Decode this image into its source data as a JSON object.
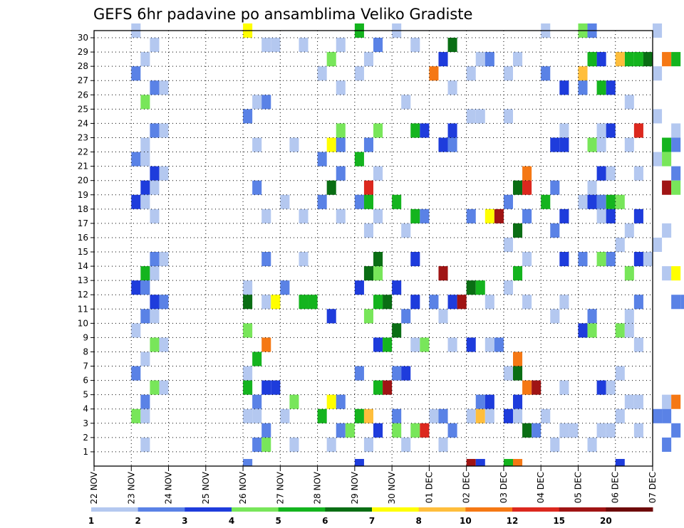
{
  "chart_data": {
    "type": "heatmap",
    "title": "GEFS 6hr padavine po ansamblima Veliko Gradiste",
    "y_ticks": [
      "1",
      "2",
      "3",
      "4",
      "5",
      "6",
      "7",
      "8",
      "9",
      "10",
      "11",
      "12",
      "13",
      "14",
      "15",
      "16",
      "17",
      "18",
      "19",
      "20",
      "21",
      "22",
      "23",
      "24",
      "25",
      "26",
      "27",
      "28",
      "29",
      "30"
    ],
    "ylim": [
      0,
      30
    ],
    "x_ticks": [
      "22 NOV",
      "23 NOV",
      "24 NOV",
      "25 NOV",
      "26 NOV",
      "27 NOV",
      "28 NOV",
      "29 NOV",
      "30 NOV",
      "01 DEC",
      "02 DEC",
      "03 DEC",
      "04 DEC",
      "05 DEC",
      "06 DEC",
      "07 DEC"
    ],
    "steps_per_day": 4,
    "grid": "dotted",
    "colorbar": {
      "position": "bottom",
      "tick_labels": [
        "1",
        "2",
        "3",
        "4",
        "5",
        "6",
        "7",
        "8",
        "10",
        "12",
        "15",
        "20"
      ],
      "colors": [
        "#b4c8f0",
        "#5a82e6",
        "#1e3cdc",
        "#78e65a",
        "#14b41e",
        "#0a6e14",
        "#ffff00",
        "#ffbe3c",
        "#f57814",
        "#dc281e",
        "#a01414",
        "#6e0a0a"
      ]
    },
    "cells": [
      [
        1,
        30,
        0
      ],
      [
        1,
        29,
        0
      ],
      [
        1,
        28,
        0
      ],
      [
        1,
        27,
        1
      ],
      [
        1,
        26,
        1
      ],
      [
        1,
        26,
        0
      ],
      [
        1,
        25,
        3
      ],
      [
        1,
        23,
        1
      ],
      [
        1,
        23,
        0
      ],
      [
        1,
        22,
        0
      ],
      [
        1,
        21,
        1
      ],
      [
        1,
        21,
        0
      ],
      [
        1,
        20,
        2
      ],
      [
        1,
        20,
        0
      ],
      [
        1,
        19,
        2
      ],
      [
        1,
        19,
        0
      ],
      [
        1,
        18,
        2
      ],
      [
        1,
        18,
        0
      ],
      [
        1,
        17,
        0
      ],
      [
        1,
        14,
        1
      ],
      [
        1,
        14,
        0
      ],
      [
        1,
        13,
        4
      ],
      [
        1,
        13,
        0
      ],
      [
        1,
        12,
        2
      ],
      [
        1,
        12,
        1
      ],
      [
        1,
        11,
        2
      ],
      [
        1,
        11,
        1
      ],
      [
        1,
        10,
        1
      ],
      [
        1,
        10,
        0
      ],
      [
        1,
        9,
        0
      ],
      [
        1,
        8,
        3
      ],
      [
        1,
        8,
        0
      ],
      [
        1,
        7,
        0
      ],
      [
        1,
        6,
        1
      ],
      [
        1,
        5,
        3
      ],
      [
        1,
        5,
        0
      ],
      [
        1,
        4,
        1
      ],
      [
        1,
        3,
        3
      ],
      [
        1,
        3,
        0
      ],
      [
        1,
        1,
        0
      ],
      [
        4,
        30,
        6
      ],
      [
        4,
        29,
        0
      ],
      [
        4,
        29,
        0
      ],
      [
        4,
        25,
        0
      ],
      [
        4,
        25,
        1
      ],
      [
        4,
        24,
        1
      ],
      [
        4,
        22,
        0
      ],
      [
        4,
        19,
        1
      ],
      [
        4,
        17,
        0
      ],
      [
        4,
        14,
        1
      ],
      [
        4,
        12,
        0
      ],
      [
        4,
        11,
        0
      ],
      [
        4,
        11,
        6
      ],
      [
        4,
        11,
        5
      ],
      [
        4,
        9,
        3
      ],
      [
        4,
        8,
        8
      ],
      [
        4,
        7,
        4
      ],
      [
        4,
        6,
        0
      ],
      [
        4,
        5,
        2
      ],
      [
        4,
        5,
        2
      ],
      [
        4,
        5,
        4
      ],
      [
        4,
        4,
        1
      ],
      [
        4,
        3,
        0
      ],
      [
        4,
        3,
        0
      ],
      [
        4,
        2,
        1
      ],
      [
        4,
        1,
        1
      ],
      [
        4,
        1,
        3
      ],
      [
        4,
        0,
        1
      ],
      [
        5,
        29,
        0
      ],
      [
        5,
        22,
        0
      ],
      [
        5,
        18,
        0
      ],
      [
        5,
        17,
        0
      ],
      [
        5,
        14,
        0
      ],
      [
        5,
        12,
        1
      ],
      [
        5,
        11,
        4
      ],
      [
        5,
        11,
        4
      ],
      [
        5,
        4,
        3
      ],
      [
        5,
        3,
        0
      ],
      [
        5,
        1,
        0
      ],
      [
        6,
        29,
        0
      ],
      [
        6,
        28,
        3
      ],
      [
        6,
        27,
        0
      ],
      [
        6,
        26,
        0
      ],
      [
        6,
        23,
        3
      ],
      [
        6,
        22,
        6
      ],
      [
        6,
        22,
        1
      ],
      [
        6,
        21,
        1
      ],
      [
        6,
        20,
        1
      ],
      [
        6,
        19,
        5
      ],
      [
        6,
        18,
        1
      ],
      [
        6,
        17,
        0
      ],
      [
        6,
        10,
        2
      ],
      [
        6,
        4,
        6
      ],
      [
        6,
        4,
        1
      ],
      [
        6,
        3,
        4
      ],
      [
        6,
        2,
        1
      ],
      [
        6,
        2,
        3
      ],
      [
        6,
        1,
        0
      ],
      [
        7,
        30,
        4
      ],
      [
        7,
        29,
        1
      ],
      [
        7,
        28,
        0
      ],
      [
        7,
        27,
        0
      ],
      [
        7,
        23,
        3
      ],
      [
        7,
        22,
        1
      ],
      [
        7,
        21,
        4
      ],
      [
        7,
        20,
        0
      ],
      [
        7,
        19,
        9
      ],
      [
        7,
        18,
        1
      ],
      [
        7,
        18,
        4
      ],
      [
        7,
        17,
        0
      ],
      [
        7,
        16,
        0
      ],
      [
        7,
        14,
        5
      ],
      [
        7,
        13,
        5
      ],
      [
        7,
        13,
        3
      ],
      [
        7,
        12,
        2
      ],
      [
        7,
        11,
        4
      ],
      [
        7,
        11,
        5
      ],
      [
        7,
        10,
        3
      ],
      [
        7,
        8,
        2
      ],
      [
        7,
        8,
        4
      ],
      [
        7,
        6,
        1
      ],
      [
        7,
        5,
        4
      ],
      [
        7,
        5,
        10
      ],
      [
        7,
        3,
        4
      ],
      [
        7,
        3,
        7
      ],
      [
        7,
        2,
        2
      ],
      [
        7,
        1,
        0
      ],
      [
        7,
        0,
        2
      ],
      [
        8,
        30,
        0
      ],
      [
        8,
        29,
        0
      ],
      [
        8,
        25,
        0
      ],
      [
        8,
        23,
        4
      ],
      [
        8,
        23,
        2
      ],
      [
        8,
        18,
        4
      ],
      [
        8,
        17,
        4
      ],
      [
        8,
        17,
        1
      ],
      [
        8,
        16,
        0
      ],
      [
        8,
        14,
        2
      ],
      [
        8,
        12,
        2
      ],
      [
        8,
        11,
        2
      ],
      [
        8,
        10,
        1
      ],
      [
        8,
        9,
        5
      ],
      [
        8,
        8,
        0
      ],
      [
        8,
        8,
        3
      ],
      [
        8,
        6,
        1
      ],
      [
        8,
        6,
        2
      ],
      [
        8,
        3,
        1
      ],
      [
        8,
        2,
        3
      ],
      [
        8,
        2,
        9
      ],
      [
        8,
        2,
        3
      ],
      [
        8,
        1,
        0
      ],
      [
        9,
        29,
        5
      ],
      [
        9,
        28,
        2
      ],
      [
        9,
        27,
        8
      ],
      [
        9,
        26,
        0
      ],
      [
        9,
        23,
        2
      ],
      [
        9,
        22,
        2
      ],
      [
        9,
        22,
        1
      ],
      [
        9,
        13,
        10
      ],
      [
        9,
        11,
        2
      ],
      [
        9,
        11,
        10
      ],
      [
        9,
        11,
        1
      ],
      [
        9,
        10,
        0
      ],
      [
        9,
        8,
        0
      ],
      [
        9,
        3,
        0
      ],
      [
        9,
        3,
        1
      ],
      [
        9,
        2,
        1
      ],
      [
        9,
        1,
        0
      ],
      [
        10,
        28,
        0
      ],
      [
        10,
        28,
        1
      ],
      [
        10,
        27,
        0
      ],
      [
        10,
        24,
        0
      ],
      [
        10,
        24,
        0
      ],
      [
        10,
        17,
        6
      ],
      [
        10,
        17,
        10
      ],
      [
        10,
        17,
        1
      ],
      [
        10,
        12,
        5
      ],
      [
        10,
        12,
        4
      ],
      [
        10,
        11,
        0
      ],
      [
        10,
        8,
        0
      ],
      [
        10,
        8,
        1
      ],
      [
        10,
        8,
        2
      ],
      [
        10,
        4,
        1
      ],
      [
        10,
        4,
        2
      ],
      [
        10,
        3,
        0
      ],
      [
        10,
        3,
        7
      ],
      [
        10,
        3,
        0
      ],
      [
        10,
        0,
        10
      ],
      [
        10,
        0,
        2
      ],
      [
        11,
        28,
        0
      ],
      [
        11,
        27,
        0
      ],
      [
        11,
        24,
        0
      ],
      [
        11,
        20,
        8
      ],
      [
        11,
        19,
        5
      ],
      [
        11,
        19,
        9
      ],
      [
        11,
        18,
        1
      ],
      [
        11,
        17,
        1
      ],
      [
        11,
        16,
        5
      ],
      [
        11,
        15,
        0
      ],
      [
        11,
        14,
        0
      ],
      [
        11,
        13,
        4
      ],
      [
        11,
        12,
        0
      ],
      [
        11,
        11,
        0
      ],
      [
        11,
        7,
        8
      ],
      [
        11,
        6,
        0
      ],
      [
        11,
        6,
        5
      ],
      [
        11,
        5,
        8
      ],
      [
        11,
        5,
        10
      ],
      [
        11,
        4,
        2
      ],
      [
        11,
        3,
        2
      ],
      [
        11,
        3,
        0
      ],
      [
        11,
        2,
        5
      ],
      [
        11,
        2,
        1
      ],
      [
        11,
        0,
        4
      ],
      [
        11,
        0,
        8
      ],
      [
        12,
        30,
        0
      ],
      [
        12,
        27,
        1
      ],
      [
        12,
        26,
        2
      ],
      [
        12,
        23,
        0
      ],
      [
        12,
        22,
        2
      ],
      [
        12,
        22,
        2
      ],
      [
        12,
        19,
        1
      ],
      [
        12,
        18,
        4
      ],
      [
        12,
        17,
        2
      ],
      [
        12,
        16,
        1
      ],
      [
        12,
        14,
        2
      ],
      [
        12,
        11,
        0
      ],
      [
        12,
        10,
        0
      ],
      [
        12,
        5,
        0
      ],
      [
        12,
        3,
        0
      ],
      [
        12,
        2,
        0
      ],
      [
        12,
        2,
        0
      ],
      [
        12,
        1,
        0
      ],
      [
        13,
        30,
        3
      ],
      [
        13,
        30,
        1
      ],
      [
        13,
        28,
        4
      ],
      [
        13,
        28,
        2
      ],
      [
        13,
        27,
        7
      ],
      [
        13,
        26,
        4
      ],
      [
        13,
        26,
        2
      ],
      [
        13,
        26,
        1
      ],
      [
        13,
        23,
        0
      ],
      [
        13,
        23,
        2
      ],
      [
        13,
        22,
        3
      ],
      [
        13,
        22,
        0
      ],
      [
        13,
        20,
        2
      ],
      [
        13,
        20,
        0
      ],
      [
        13,
        19,
        0
      ],
      [
        13,
        18,
        0
      ],
      [
        13,
        18,
        2
      ],
      [
        13,
        18,
        1
      ],
      [
        13,
        18,
        4
      ],
      [
        13,
        17,
        0
      ],
      [
        13,
        17,
        2
      ],
      [
        13,
        14,
        3
      ],
      [
        13,
        14,
        1
      ],
      [
        13,
        14,
        1
      ],
      [
        13,
        10,
        1
      ],
      [
        13,
        9,
        2
      ],
      [
        13,
        9,
        3
      ],
      [
        13,
        5,
        2
      ],
      [
        13,
        5,
        0
      ],
      [
        13,
        2,
        0
      ],
      [
        13,
        2,
        0
      ],
      [
        13,
        1,
        0
      ],
      [
        14,
        28,
        4
      ],
      [
        14,
        28,
        4
      ],
      [
        14,
        28,
        5
      ],
      [
        14,
        28,
        7
      ],
      [
        14,
        25,
        0
      ],
      [
        14,
        23,
        9
      ],
      [
        14,
        22,
        0
      ],
      [
        14,
        20,
        0
      ],
      [
        14,
        18,
        3
      ],
      [
        14,
        17,
        2
      ],
      [
        14,
        16,
        0
      ],
      [
        14,
        15,
        0
      ],
      [
        14,
        14,
        2
      ],
      [
        14,
        14,
        0
      ],
      [
        14,
        13,
        3
      ],
      [
        14,
        11,
        1
      ],
      [
        14,
        10,
        0
      ],
      [
        14,
        9,
        3
      ],
      [
        14,
        9,
        0
      ],
      [
        14,
        8,
        0
      ],
      [
        14,
        6,
        0
      ],
      [
        14,
        4,
        0
      ],
      [
        14,
        4,
        0
      ],
      [
        14,
        3,
        0
      ],
      [
        14,
        2,
        0
      ],
      [
        14,
        0,
        2
      ],
      [
        15,
        30,
        0
      ],
      [
        15,
        28,
        8
      ],
      [
        15,
        28,
        4
      ],
      [
        15,
        27,
        0
      ],
      [
        15,
        24,
        0
      ],
      [
        15,
        23,
        0
      ],
      [
        15,
        22,
        4
      ],
      [
        15,
        22,
        1
      ],
      [
        15,
        21,
        0
      ],
      [
        15,
        21,
        3
      ],
      [
        15,
        20,
        1
      ],
      [
        15,
        19,
        10
      ],
      [
        15,
        19,
        3
      ],
      [
        15,
        16,
        0
      ],
      [
        15,
        15,
        0
      ],
      [
        15,
        13,
        0
      ],
      [
        15,
        13,
        6
      ],
      [
        15,
        11,
        1
      ],
      [
        15,
        11,
        1
      ],
      [
        15,
        4,
        0
      ],
      [
        15,
        4,
        8
      ],
      [
        15,
        3,
        1
      ],
      [
        15,
        3,
        1
      ],
      [
        15,
        2,
        1
      ],
      [
        15,
        1,
        1
      ]
    ]
  }
}
